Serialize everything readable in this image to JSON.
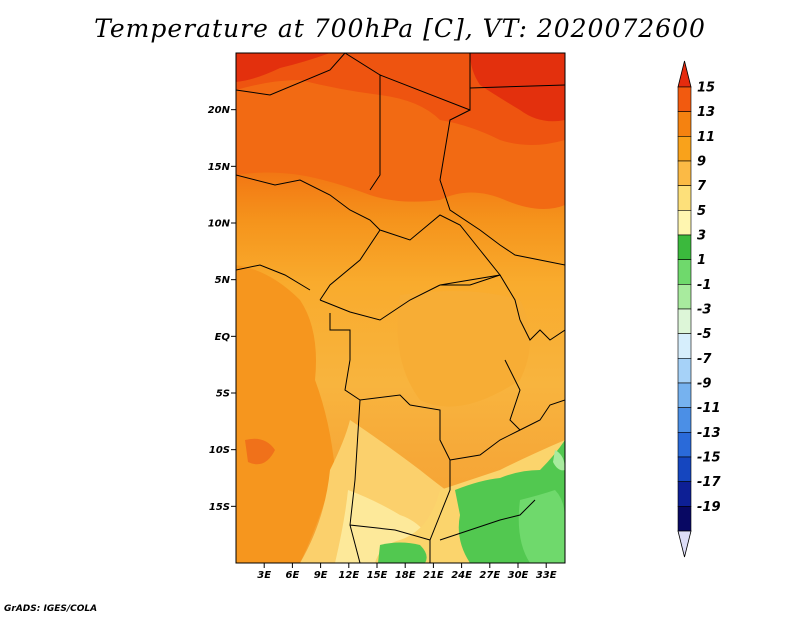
{
  "title": "Temperature at 700hPa [C], VT: 2020072600",
  "credit": "GrADS: IGES/COLA",
  "map": {
    "lon_range": [
      0,
      35
    ],
    "lat_range": [
      -20,
      25
    ],
    "lat_ticks": [
      {
        "label": "20N",
        "value": 20
      },
      {
        "label": "15N",
        "value": 15
      },
      {
        "label": "10N",
        "value": 10
      },
      {
        "label": "5N",
        "value": 5
      },
      {
        "label": "EQ",
        "value": 0
      },
      {
        "label": "5S",
        "value": -5
      },
      {
        "label": "10S",
        "value": -10
      },
      {
        "label": "15S",
        "value": -15
      }
    ],
    "lon_ticks": [
      {
        "label": "3E",
        "value": 3
      },
      {
        "label": "6E",
        "value": 6
      },
      {
        "label": "9E",
        "value": 9
      },
      {
        "label": "12E",
        "value": 12
      },
      {
        "label": "15E",
        "value": 15
      },
      {
        "label": "18E",
        "value": 18
      },
      {
        "label": "21E",
        "value": 21
      },
      {
        "label": "24E",
        "value": 24
      },
      {
        "label": "27E",
        "value": 27
      },
      {
        "label": "30E",
        "value": 30
      },
      {
        "label": "33E",
        "value": 33
      }
    ]
  },
  "colorbar": {
    "labels": [
      "15",
      "13",
      "11",
      "9",
      "7",
      "5",
      "3",
      "1",
      "-1",
      "-3",
      "-5",
      "-7",
      "-9",
      "-11",
      "-13",
      "-15",
      "-17",
      "-19"
    ],
    "colors": [
      "#e52b0e",
      "#f25a0f",
      "#f58210",
      "#f9a21b",
      "#fbba45",
      "#fde07a",
      "#fff6b0",
      "#3bb93d",
      "#6fd96c",
      "#a8eb9e",
      "#ddf6d8",
      "#d6eefc",
      "#a6d2f8",
      "#76b2ef",
      "#4b8fe6",
      "#2a6ad9",
      "#1546bf",
      "#0d1f95",
      "#080863"
    ],
    "top_arrow_color": "#e52b0e",
    "bottom_arrow_color": "#ddddf7"
  }
}
